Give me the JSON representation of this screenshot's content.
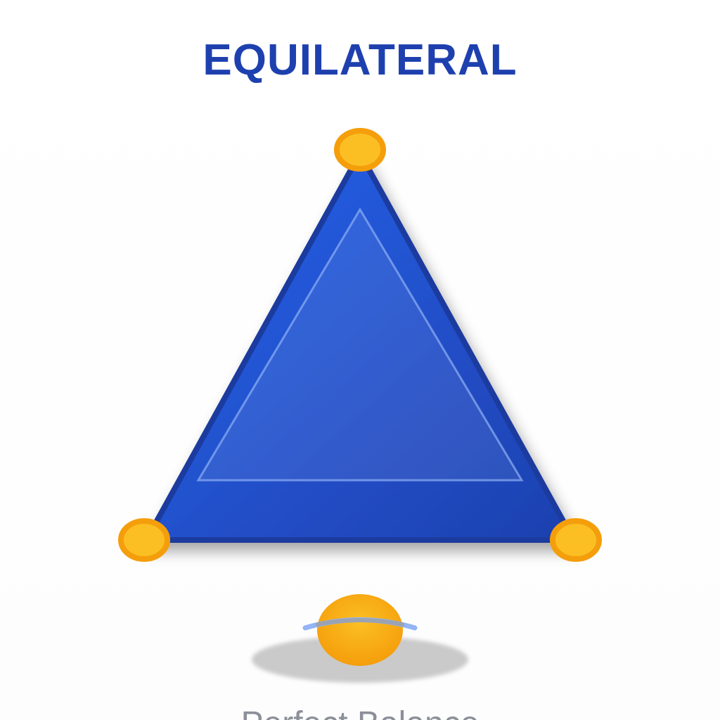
{
  "title": "EQUILATERAL",
  "caption": "Perfect Balance",
  "colors": {
    "title": "#1e40af",
    "triangle_fill_light": "#2563eb",
    "triangle_fill_dark": "#1e40af",
    "triangle_stroke": "#1e3a9f",
    "vertex_fill": "#fbbf24",
    "vertex_stroke": "#f59e0b",
    "balance_ball": "#f59e0b",
    "balance_beam": "#93b4f5",
    "shadow": "#c8c8c8",
    "caption": "#8b8f98"
  },
  "icons": {
    "vertex_marker": "circle",
    "balance": "ball-on-beam"
  }
}
